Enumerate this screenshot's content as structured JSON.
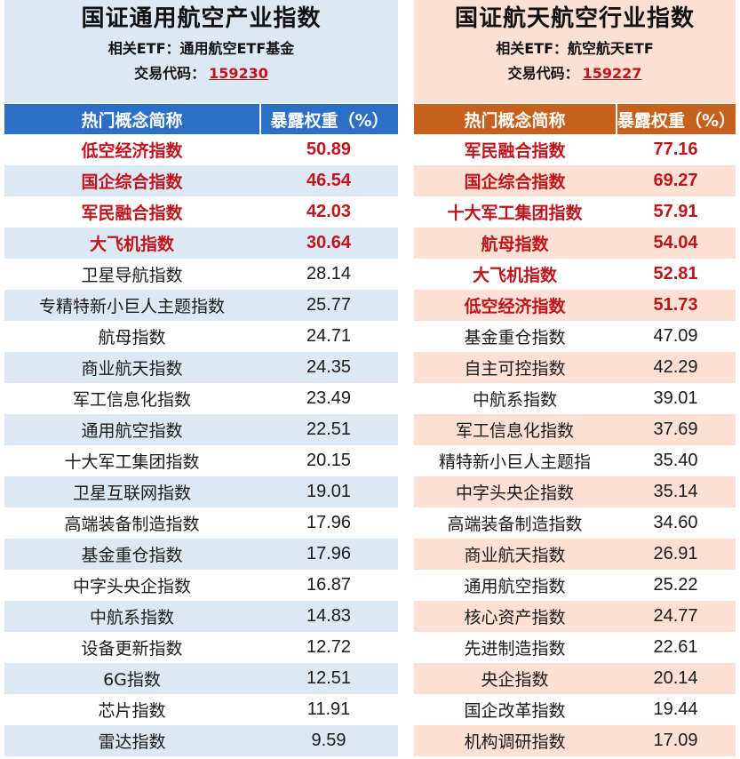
{
  "chart_data": [
    {
      "type": "table",
      "title": "国证通用航空产业指数",
      "etf_label": "相关ETF：通用航空ETF基金",
      "code_prefix": "交易代码：",
      "code": "159230",
      "columns": [
        "热门概念简称",
        "暴露权重（%）"
      ],
      "highlight_count": 4,
      "highlight_color": "#c0141c",
      "accent_color": "#2b6fc6",
      "stripe_color": "#dce9f5",
      "rows": [
        {
          "name": "低空经济指数",
          "value": "50.89"
        },
        {
          "name": "国企综合指数",
          "value": "46.54"
        },
        {
          "name": "军民融合指数",
          "value": "42.03"
        },
        {
          "name": "大飞机指数",
          "value": "30.64"
        },
        {
          "name": "卫星导航指数",
          "value": "28.14"
        },
        {
          "name": "专精特新小巨人主题指数",
          "value": "25.77"
        },
        {
          "name": "航母指数",
          "value": "24.71"
        },
        {
          "name": "商业航天指数",
          "value": "24.35"
        },
        {
          "name": "军工信息化指数",
          "value": "23.49"
        },
        {
          "name": "通用航空指数",
          "value": "22.51"
        },
        {
          "name": "十大军工集团指数",
          "value": "20.15"
        },
        {
          "name": "卫星互联网指数",
          "value": "19.01"
        },
        {
          "name": "高端装备制造指数",
          "value": "17.96"
        },
        {
          "name": "基金重仓指数",
          "value": "17.96"
        },
        {
          "name": "中字头央企指数",
          "value": "16.87"
        },
        {
          "name": "中航系指数",
          "value": "14.83"
        },
        {
          "name": "设备更新指数",
          "value": "12.72"
        },
        {
          "name": "6G指数",
          "value": "12.51"
        },
        {
          "name": "芯片指数",
          "value": "11.91"
        },
        {
          "name": "雷达指数",
          "value": "9.59"
        }
      ]
    },
    {
      "type": "table",
      "title": "国证航天航空行业指数",
      "etf_label": "相关ETF：航空航天ETF",
      "code_prefix": "交易代码：",
      "code": "159227",
      "columns": [
        "热门概念简称",
        "暴露权重（%）"
      ],
      "highlight_count": 6,
      "highlight_color": "#c0141c",
      "accent_color": "#c8601d",
      "stripe_color": "#fbe0d3",
      "rows": [
        {
          "name": "军民融合指数",
          "value": "77.16"
        },
        {
          "name": "国企综合指数",
          "value": "69.27"
        },
        {
          "name": "十大军工集团指数",
          "value": "57.91"
        },
        {
          "name": "航母指数",
          "value": "54.04"
        },
        {
          "name": "大飞机指数",
          "value": "52.81"
        },
        {
          "name": "低空经济指数",
          "value": "51.73"
        },
        {
          "name": "基金重仓指数",
          "value": "47.09"
        },
        {
          "name": "自主可控指数",
          "value": "42.29"
        },
        {
          "name": "中航系指数",
          "value": "39.01"
        },
        {
          "name": "军工信息化指数",
          "value": "37.69"
        },
        {
          "name": "精特新小巨人主题指",
          "value": "35.40"
        },
        {
          "name": "中字头央企指数",
          "value": "35.14"
        },
        {
          "name": "高端装备制造指数",
          "value": "34.60"
        },
        {
          "name": "商业航天指数",
          "value": "26.91"
        },
        {
          "name": "通用航空指数",
          "value": "25.22"
        },
        {
          "name": "核心资产指数",
          "value": "24.77"
        },
        {
          "name": "先进制造指数",
          "value": "22.61"
        },
        {
          "name": "央企指数",
          "value": "20.14"
        },
        {
          "name": "国企改革指数",
          "value": "19.44"
        },
        {
          "name": "机构调研指数",
          "value": "17.09"
        }
      ]
    }
  ]
}
